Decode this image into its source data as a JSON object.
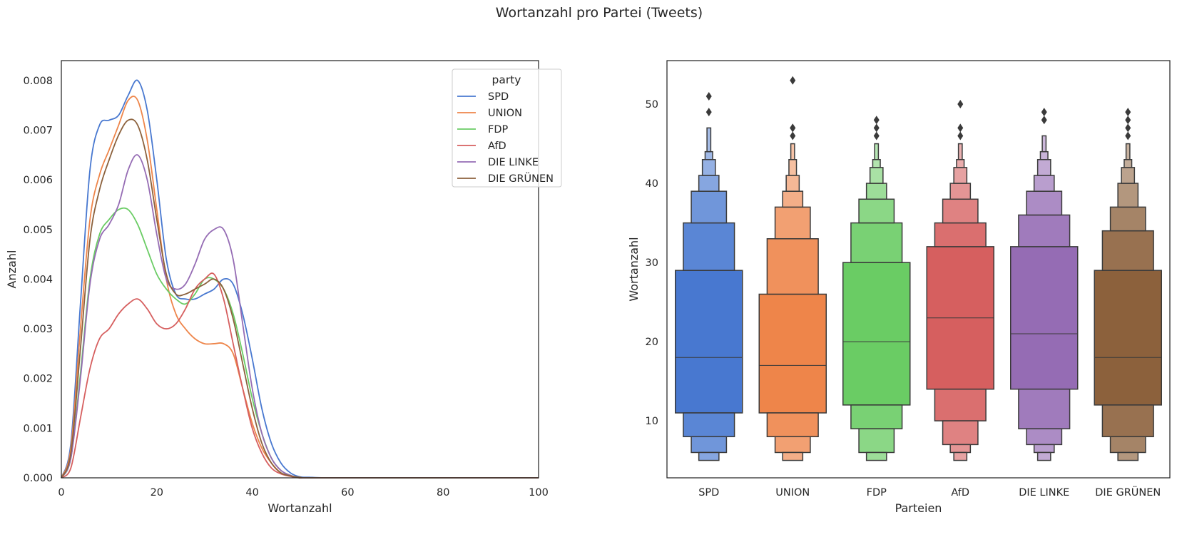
{
  "figure": {
    "title": "Wortanzahl pro Partei (Tweets)"
  },
  "colors": {
    "SPD": "#4878d0",
    "UNION": "#ee854a",
    "FDP": "#6acc64",
    "AfD": "#d65f5f",
    "DIE LINKE": "#956cb4",
    "DIE GRÜNEN": "#8c613c",
    "outline": "#3a3a3a"
  },
  "chart_data": [
    {
      "type": "line",
      "subtype": "kde",
      "xlabel": "Wortanzahl",
      "ylabel": "Anzahl",
      "xlim": [
        0,
        100
      ],
      "ylim": [
        0,
        0.0084
      ],
      "xticks": [
        0,
        20,
        40,
        60,
        80,
        100
      ],
      "xtick_labels": [
        "0",
        "20",
        "40",
        "60",
        "80",
        "100"
      ],
      "yticks": [
        0,
        0.001,
        0.002,
        0.003,
        0.004,
        0.005,
        0.006,
        0.007,
        0.008
      ],
      "ytick_labels": [
        "0.000",
        "0.001",
        "0.002",
        "0.003",
        "0.004",
        "0.005",
        "0.006",
        "0.007",
        "0.008"
      ],
      "legend": {
        "title": "party",
        "position": "upper right",
        "entries": [
          "SPD",
          "UNION",
          "FDP",
          "AfD",
          "DIE LINKE",
          "DIE GRÜNEN"
        ]
      },
      "series": [
        {
          "name": "SPD",
          "x": [
            0,
            2,
            4,
            6,
            8,
            10,
            12,
            14,
            16,
            18,
            20,
            22,
            24,
            26,
            28,
            30,
            32,
            34,
            36,
            38,
            40,
            42,
            44,
            46,
            48,
            50,
            52,
            55,
            60,
            100
          ],
          "values": [
            0,
            0.0007,
            0.0035,
            0.0062,
            0.0071,
            0.0072,
            0.0073,
            0.0077,
            0.008,
            0.0074,
            0.006,
            0.0044,
            0.0037,
            0.0036,
            0.0036,
            0.0037,
            0.0038,
            0.004,
            0.0039,
            0.0033,
            0.0024,
            0.0014,
            0.0007,
            0.0003,
            0.0001,
            2e-05,
            1e-05,
            0,
            0,
            0
          ]
        },
        {
          "name": "UNION",
          "x": [
            0,
            2,
            4,
            6,
            8,
            10,
            12,
            14,
            16,
            18,
            20,
            22,
            24,
            26,
            28,
            30,
            32,
            34,
            36,
            38,
            40,
            42,
            44,
            46,
            48,
            50,
            55,
            100
          ],
          "values": [
            0,
            0.0006,
            0.003,
            0.0052,
            0.0061,
            0.0066,
            0.0071,
            0.0076,
            0.0076,
            0.0068,
            0.0054,
            0.004,
            0.0033,
            0.003,
            0.0028,
            0.0027,
            0.0027,
            0.0027,
            0.0025,
            0.0018,
            0.0011,
            0.0006,
            0.0003,
            0.0001,
            4e-05,
            0,
            0,
            0
          ]
        },
        {
          "name": "FDP",
          "x": [
            0,
            2,
            4,
            6,
            8,
            10,
            12,
            14,
            16,
            18,
            20,
            22,
            24,
            26,
            28,
            30,
            32,
            34,
            36,
            38,
            40,
            42,
            44,
            46,
            48,
            50,
            55,
            100
          ],
          "values": [
            0,
            0.0004,
            0.0021,
            0.004,
            0.0049,
            0.0052,
            0.0054,
            0.0054,
            0.0051,
            0.0046,
            0.0041,
            0.0038,
            0.0036,
            0.0035,
            0.0037,
            0.004,
            0.004,
            0.0038,
            0.0033,
            0.0025,
            0.0016,
            0.0009,
            0.0004,
            0.00015,
            5e-05,
            1e-05,
            0,
            0
          ]
        },
        {
          "name": "AfD",
          "x": [
            0,
            2,
            4,
            6,
            8,
            10,
            12,
            14,
            16,
            18,
            20,
            22,
            24,
            26,
            28,
            30,
            32,
            34,
            36,
            38,
            40,
            42,
            44,
            46,
            48,
            50,
            55,
            100
          ],
          "values": [
            0,
            0.0002,
            0.0012,
            0.0022,
            0.0028,
            0.003,
            0.0033,
            0.0035,
            0.0036,
            0.0034,
            0.0031,
            0.003,
            0.0031,
            0.0034,
            0.0038,
            0.004,
            0.0041,
            0.0036,
            0.0027,
            0.0018,
            0.001,
            0.0005,
            0.0002,
            8e-05,
            3e-05,
            0,
            0,
            0
          ]
        },
        {
          "name": "DIE LINKE",
          "x": [
            0,
            2,
            4,
            6,
            8,
            10,
            12,
            14,
            16,
            18,
            20,
            22,
            24,
            26,
            28,
            30,
            32,
            34,
            36,
            38,
            40,
            42,
            44,
            46,
            48,
            50,
            55,
            100
          ],
          "values": [
            0,
            0.0004,
            0.002,
            0.0039,
            0.0048,
            0.0051,
            0.0055,
            0.0062,
            0.0065,
            0.006,
            0.0049,
            0.004,
            0.0038,
            0.0039,
            0.0043,
            0.0048,
            0.005,
            0.005,
            0.0044,
            0.0031,
            0.0018,
            0.0009,
            0.0004,
            0.00015,
            5e-05,
            1e-05,
            0,
            0
          ]
        },
        {
          "name": "DIE GRÜNEN",
          "x": [
            0,
            2,
            4,
            6,
            8,
            10,
            12,
            14,
            16,
            18,
            20,
            22,
            24,
            26,
            28,
            30,
            32,
            34,
            36,
            38,
            40,
            42,
            44,
            46,
            48,
            50,
            55,
            100
          ],
          "values": [
            0,
            0.0005,
            0.0026,
            0.0048,
            0.0058,
            0.0064,
            0.0069,
            0.0072,
            0.0071,
            0.0064,
            0.0052,
            0.0041,
            0.0037,
            0.0037,
            0.0038,
            0.0039,
            0.004,
            0.0038,
            0.0032,
            0.0023,
            0.0014,
            0.0007,
            0.0003,
            0.0001,
            4e-05,
            1e-05,
            0,
            0
          ]
        }
      ]
    },
    {
      "type": "boxen",
      "xlabel": "Parteien",
      "ylabel": "Wortanzahl",
      "ylim": [
        2.8,
        55.5
      ],
      "yticks": [
        10,
        20,
        30,
        40,
        50
      ],
      "ytick_labels": [
        "10",
        "20",
        "30",
        "40",
        "50"
      ],
      "categories": [
        "SPD",
        "UNION",
        "FDP",
        "AfD",
        "DIE LINKE",
        "DIE GRÜNEN"
      ],
      "series": [
        {
          "name": "SPD",
          "median": 18,
          "boxes": [
            [
              11,
              29
            ],
            [
              8,
              35
            ],
            [
              6,
              39
            ],
            [
              5,
              41
            ],
            [
              null,
              43
            ],
            [
              null,
              44
            ],
            [
              null,
              47
            ]
          ],
          "outliers": [
            49,
            51
          ]
        },
        {
          "name": "UNION",
          "median": 17,
          "boxes": [
            [
              11,
              26
            ],
            [
              8,
              33
            ],
            [
              6,
              37
            ],
            [
              5,
              39
            ],
            [
              null,
              41
            ],
            [
              null,
              43
            ],
            [
              null,
              45
            ]
          ],
          "outliers": [
            46,
            47,
            47,
            53
          ]
        },
        {
          "name": "FDP",
          "median": 20,
          "boxes": [
            [
              12,
              30
            ],
            [
              9,
              35
            ],
            [
              6,
              38
            ],
            [
              5,
              40
            ],
            [
              null,
              42
            ],
            [
              null,
              43
            ],
            [
              null,
              45
            ]
          ],
          "outliers": [
            46,
            47,
            48
          ]
        },
        {
          "name": "AfD",
          "median": 23,
          "boxes": [
            [
              14,
              32
            ],
            [
              10,
              35
            ],
            [
              7,
              38
            ],
            [
              6,
              40
            ],
            [
              5,
              42
            ],
            [
              null,
              43
            ],
            [
              null,
              45
            ]
          ],
          "outliers": [
            46,
            47,
            50
          ]
        },
        {
          "name": "DIE LINKE",
          "median": 21,
          "boxes": [
            [
              14,
              32
            ],
            [
              9,
              36
            ],
            [
              7,
              39
            ],
            [
              6,
              41
            ],
            [
              5,
              43
            ],
            [
              null,
              44
            ],
            [
              null,
              46
            ]
          ],
          "outliers": [
            48,
            49
          ]
        },
        {
          "name": "DIE GRÜNEN",
          "median": 18,
          "boxes": [
            [
              12,
              29
            ],
            [
              8,
              34
            ],
            [
              6,
              37
            ],
            [
              5,
              40
            ],
            [
              null,
              42
            ],
            [
              null,
              43
            ],
            [
              null,
              45
            ]
          ],
          "outliers": [
            46,
            47,
            48,
            49
          ]
        }
      ]
    }
  ]
}
